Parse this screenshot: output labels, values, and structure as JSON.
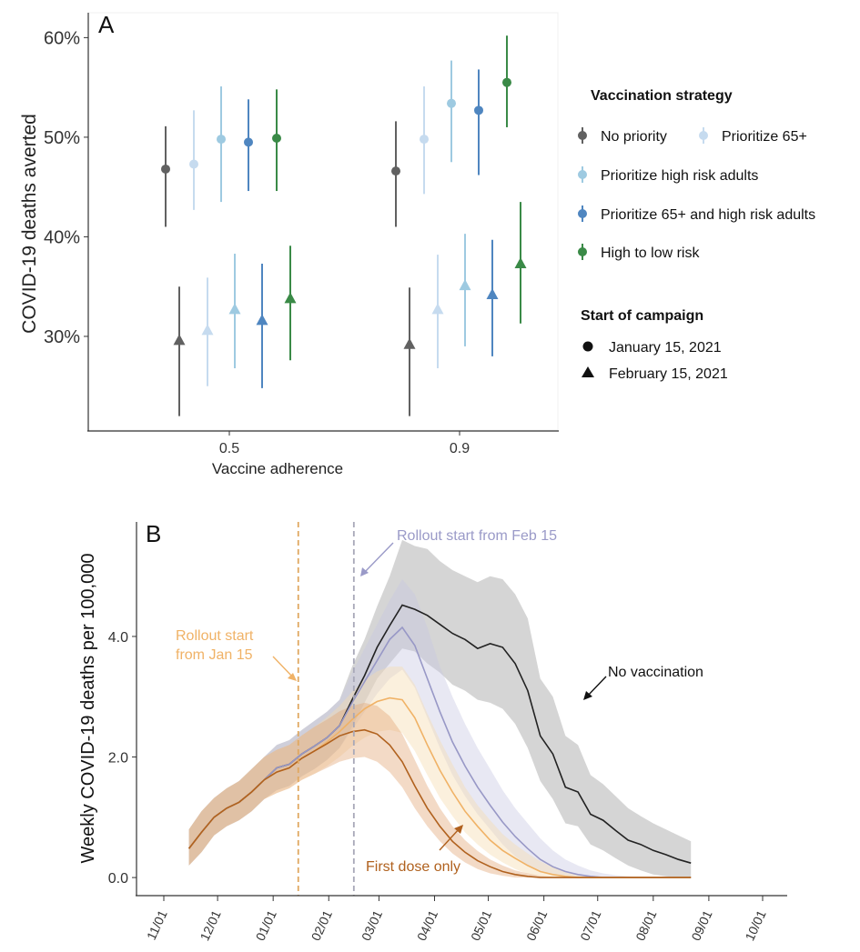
{
  "chart_data": [
    {
      "panel": "A",
      "type": "scatter",
      "ylabel": "COVID-19 deaths averted",
      "xlabel": "Vaccine adherence",
      "categories": [
        "0.5",
        "0.9"
      ],
      "ylim": [
        20.5,
        62.5
      ],
      "y_ticks": [
        "30%",
        "40%",
        "50%",
        "60%"
      ],
      "y_tick_values": [
        30,
        40,
        50,
        60
      ],
      "legend": {
        "strategy_title": "Vaccination strategy",
        "start_title": "Start of campaign",
        "shape_entries": [
          {
            "label": "January 15, 2021",
            "shape": "circle"
          },
          {
            "label": "February 15, 2021",
            "shape": "triangle"
          }
        ],
        "placement": "right"
      },
      "series": [
        {
          "name": "No priority",
          "color": "#616161",
          "jan15": [
            {
              "mean": 46.8,
              "lo": 41.0,
              "hi": 51.1
            },
            {
              "mean": 46.6,
              "lo": 41.0,
              "hi": 51.6
            }
          ],
          "feb15": [
            {
              "mean": 29.6,
              "lo": 22.0,
              "hi": 35.0
            },
            {
              "mean": 29.2,
              "lo": 22.0,
              "hi": 34.9
            }
          ]
        },
        {
          "name": "Prioritize 65+",
          "color": "#c6dbef",
          "jan15": [
            {
              "mean": 47.3,
              "lo": 42.7,
              "hi": 52.7
            },
            {
              "mean": 49.8,
              "lo": 44.3,
              "hi": 55.1
            }
          ],
          "feb15": [
            {
              "mean": 30.6,
              "lo": 25.0,
              "hi": 35.9
            },
            {
              "mean": 32.7,
              "lo": 26.8,
              "hi": 38.2
            }
          ]
        },
        {
          "name": "Prioritize high risk adults",
          "color": "#9ecae1",
          "jan15": [
            {
              "mean": 49.8,
              "lo": 43.5,
              "hi": 55.1
            },
            {
              "mean": 53.4,
              "lo": 47.5,
              "hi": 57.7
            }
          ],
          "feb15": [
            {
              "mean": 32.7,
              "lo": 26.8,
              "hi": 38.3
            },
            {
              "mean": 35.1,
              "lo": 29.0,
              "hi": 40.3
            }
          ]
        },
        {
          "name": "Prioritize 65+ and high risk adults",
          "color": "#4f86c0",
          "jan15": [
            {
              "mean": 49.5,
              "lo": 44.6,
              "hi": 53.8
            },
            {
              "mean": 52.7,
              "lo": 46.2,
              "hi": 56.8
            }
          ],
          "feb15": [
            {
              "mean": 31.6,
              "lo": 24.8,
              "hi": 37.3
            },
            {
              "mean": 34.2,
              "lo": 28.0,
              "hi": 39.7
            }
          ]
        },
        {
          "name": "High to low risk",
          "color": "#3a8a47",
          "jan15": [
            {
              "mean": 49.9,
              "lo": 44.6,
              "hi": 54.8
            },
            {
              "mean": 55.5,
              "lo": 51.0,
              "hi": 60.2
            }
          ],
          "feb15": [
            {
              "mean": 33.8,
              "lo": 27.6,
              "hi": 39.1
            },
            {
              "mean": 37.3,
              "lo": 31.3,
              "hi": 43.5
            }
          ]
        }
      ]
    },
    {
      "panel": "B",
      "type": "line",
      "ylabel": "Weekly COVID-19 deaths per 100,000",
      "x_start": "2020-11-15",
      "x_step_days": 7,
      "x_range": [
        "2020-11-01",
        "2021-10-01"
      ],
      "x_tick_labels": [
        "11/01",
        "12/01",
        "01/01",
        "02/01",
        "03/01",
        "04/01",
        "05/01",
        "06/01",
        "07/01",
        "08/01",
        "09/01",
        "10/01"
      ],
      "x_tick_dates": [
        "2020-11-01",
        "2020-12-01",
        "2021-01-01",
        "2021-02-01",
        "2021-03-01",
        "2021-04-01",
        "2021-05-01",
        "2021-06-01",
        "2021-07-01",
        "2021-08-01",
        "2021-09-01",
        "2021-10-01"
      ],
      "ylim": [
        -0.3,
        5.9
      ],
      "y_ticks": [
        "0.0",
        "2.0",
        "4.0"
      ],
      "y_tick_values": [
        0,
        2,
        4
      ],
      "vlines": [
        {
          "date": "2021-01-15",
          "color": "#e0a860"
        },
        {
          "date": "2021-02-15",
          "color": "#a8a8b8"
        }
      ],
      "annotations": {
        "feb": "Rollout start from Feb 15",
        "jan_line1": "Rollout start",
        "jan_line2": "from Jan 15",
        "novax": "No vaccination",
        "firstdose": "First dose only"
      },
      "series": [
        {
          "name": "No vaccination",
          "color": "#222222",
          "band": "#9a9a9a",
          "values": [
            0.48,
            0.75,
            1.0,
            1.15,
            1.25,
            1.42,
            1.62,
            1.82,
            1.88,
            2.05,
            2.18,
            2.32,
            2.52,
            2.95,
            3.35,
            3.82,
            4.18,
            4.52,
            4.45,
            4.35,
            4.2,
            4.05,
            3.95,
            3.8,
            3.88,
            3.82,
            3.55,
            3.1,
            2.35,
            2.05,
            1.5,
            1.42,
            1.05,
            0.95,
            0.78,
            0.62,
            0.55,
            0.45,
            0.38,
            0.3,
            0.24
          ],
          "lower": [
            0.2,
            0.42,
            0.7,
            0.85,
            0.95,
            1.1,
            1.3,
            1.45,
            1.52,
            1.68,
            1.8,
            1.95,
            2.15,
            2.5,
            2.9,
            3.3,
            3.55,
            3.8,
            3.75,
            3.55,
            3.4,
            3.2,
            3.1,
            2.95,
            2.9,
            2.8,
            2.55,
            2.15,
            1.6,
            1.3,
            0.9,
            0.85,
            0.55,
            0.45,
            0.32,
            0.2,
            0.12,
            0.05,
            0.02,
            0.0,
            0.0
          ],
          "upper": [
            0.8,
            1.1,
            1.32,
            1.48,
            1.6,
            1.8,
            2.0,
            2.2,
            2.28,
            2.45,
            2.6,
            2.75,
            2.95,
            3.5,
            3.95,
            4.5,
            5.0,
            5.6,
            5.5,
            5.45,
            5.25,
            5.1,
            5.0,
            4.9,
            5.0,
            4.95,
            4.7,
            4.3,
            3.3,
            3.0,
            2.35,
            2.2,
            1.7,
            1.55,
            1.35,
            1.15,
            1.02,
            0.9,
            0.8,
            0.7,
            0.6
          ]
        },
        {
          "name": "Rollout start from Feb 15",
          "color": "#9898c6",
          "band": "#c9c9e2",
          "values": [
            0.48,
            0.75,
            1.0,
            1.15,
            1.25,
            1.42,
            1.62,
            1.82,
            1.88,
            2.05,
            2.18,
            2.32,
            2.52,
            2.9,
            3.25,
            3.6,
            3.95,
            4.15,
            3.85,
            3.3,
            2.75,
            2.25,
            1.85,
            1.5,
            1.2,
            0.92,
            0.68,
            0.48,
            0.3,
            0.18,
            0.1,
            0.05,
            0.02,
            0.0,
            0.0,
            0.0,
            0.0,
            0.0,
            0.0,
            0.0,
            0.0
          ],
          "lower": [
            0.2,
            0.42,
            0.7,
            0.85,
            0.95,
            1.1,
            1.3,
            1.45,
            1.52,
            1.68,
            1.8,
            1.95,
            2.15,
            2.45,
            2.75,
            3.05,
            3.3,
            3.45,
            3.15,
            2.65,
            2.15,
            1.7,
            1.35,
            1.05,
            0.8,
            0.55,
            0.35,
            0.2,
            0.1,
            0.04,
            0.0,
            0.0,
            0.0,
            0.0,
            0.0,
            0.0,
            0.0,
            0.0,
            0.0,
            0.0,
            0.0
          ],
          "upper": [
            0.8,
            1.1,
            1.32,
            1.48,
            1.6,
            1.8,
            2.0,
            2.2,
            2.28,
            2.45,
            2.6,
            2.75,
            2.95,
            3.4,
            3.8,
            4.2,
            4.6,
            4.95,
            4.7,
            4.15,
            3.5,
            3.0,
            2.55,
            2.15,
            1.8,
            1.45,
            1.15,
            0.9,
            0.65,
            0.45,
            0.3,
            0.2,
            0.12,
            0.07,
            0.04,
            0.02,
            0.01,
            0.0,
            0.0,
            0.0,
            0.0
          ]
        },
        {
          "name": "Rollout start from Jan 15",
          "color": "#f0b266",
          "band": "#f6dcae",
          "values": [
            0.48,
            0.75,
            1.0,
            1.15,
            1.25,
            1.42,
            1.62,
            1.75,
            1.82,
            1.98,
            2.1,
            2.25,
            2.42,
            2.62,
            2.8,
            2.92,
            2.98,
            2.95,
            2.65,
            2.2,
            1.78,
            1.42,
            1.1,
            0.85,
            0.62,
            0.45,
            0.32,
            0.2,
            0.1,
            0.05,
            0.02,
            0.0,
            0.0,
            0.0,
            0.0,
            0.0,
            0.0,
            0.0,
            0.0,
            0.0,
            0.0
          ],
          "lower": [
            0.2,
            0.42,
            0.7,
            0.85,
            0.95,
            1.1,
            1.3,
            1.4,
            1.48,
            1.62,
            1.72,
            1.85,
            2.0,
            2.18,
            2.32,
            2.42,
            2.45,
            2.4,
            2.1,
            1.7,
            1.32,
            1.02,
            0.75,
            0.55,
            0.38,
            0.25,
            0.14,
            0.06,
            0.02,
            0.0,
            0.0,
            0.0,
            0.0,
            0.0,
            0.0,
            0.0,
            0.0,
            0.0,
            0.0,
            0.0,
            0.0
          ],
          "upper": [
            0.8,
            1.1,
            1.32,
            1.48,
            1.6,
            1.8,
            2.0,
            2.12,
            2.2,
            2.36,
            2.5,
            2.66,
            2.85,
            3.08,
            3.28,
            3.42,
            3.5,
            3.5,
            3.2,
            2.72,
            2.28,
            1.88,
            1.5,
            1.2,
            0.95,
            0.72,
            0.55,
            0.4,
            0.27,
            0.17,
            0.1,
            0.05,
            0.02,
            0.0,
            0.0,
            0.0,
            0.0,
            0.0,
            0.0,
            0.0,
            0.0
          ]
        },
        {
          "name": "First dose only",
          "color": "#b0611e",
          "band": "#e2a777",
          "values": [
            0.48,
            0.75,
            1.0,
            1.15,
            1.25,
            1.42,
            1.62,
            1.75,
            1.82,
            1.98,
            2.1,
            2.22,
            2.35,
            2.42,
            2.45,
            2.38,
            2.2,
            1.92,
            1.52,
            1.15,
            0.85,
            0.6,
            0.42,
            0.28,
            0.18,
            0.1,
            0.05,
            0.02,
            0.0,
            0.0,
            0.0,
            0.0,
            0.0,
            0.0,
            0.0,
            0.0,
            0.0,
            0.0,
            0.0,
            0.0,
            0.0
          ],
          "lower": [
            0.2,
            0.42,
            0.7,
            0.85,
            0.95,
            1.1,
            1.3,
            1.4,
            1.48,
            1.62,
            1.72,
            1.82,
            1.92,
            1.98,
            2.0,
            1.92,
            1.75,
            1.5,
            1.15,
            0.85,
            0.6,
            0.4,
            0.25,
            0.14,
            0.07,
            0.03,
            0.0,
            0.0,
            0.0,
            0.0,
            0.0,
            0.0,
            0.0,
            0.0,
            0.0,
            0.0,
            0.0,
            0.0,
            0.0,
            0.0,
            0.0
          ],
          "upper": [
            0.8,
            1.1,
            1.32,
            1.48,
            1.6,
            1.8,
            2.0,
            2.12,
            2.2,
            2.36,
            2.5,
            2.62,
            2.76,
            2.85,
            2.9,
            2.85,
            2.68,
            2.38,
            1.95,
            1.52,
            1.15,
            0.85,
            0.62,
            0.44,
            0.3,
            0.2,
            0.12,
            0.07,
            0.03,
            0.01,
            0.0,
            0.0,
            0.0,
            0.0,
            0.0,
            0.0,
            0.0,
            0.0,
            0.0,
            0.0,
            0.0
          ]
        }
      ]
    }
  ],
  "panel_labels": {
    "a": "A",
    "b": "B"
  }
}
